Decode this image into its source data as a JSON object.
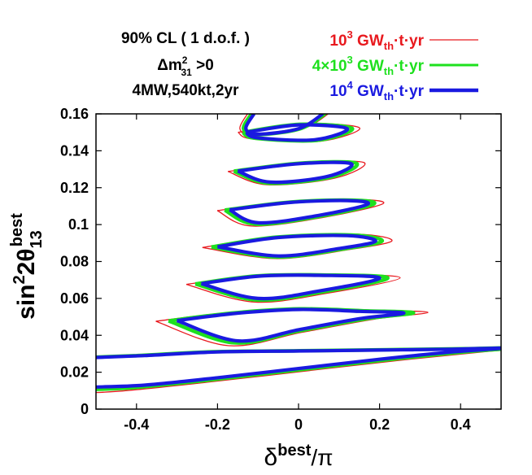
{
  "chart_data": {
    "type": "line",
    "title": "",
    "annotations": [
      {
        "text": "90% CL ( 1 d.o.f. )"
      },
      {
        "text": "Δm",
        "sup": "2",
        "sub": "31",
        "suffix": " >0"
      },
      {
        "text": "4MW,540kt,2yr"
      }
    ],
    "xlabel": {
      "main": "δ",
      "sup": "best",
      "suffix": "/π"
    },
    "ylabel": {
      "main": "sin",
      "sup1": "2",
      "mid": "2θ",
      "sub": "13",
      "sup2": "best"
    },
    "xlim": [
      -0.5,
      0.5
    ],
    "ylim": [
      0,
      0.16
    ],
    "xticks": [
      {
        "value": -0.4,
        "label": "-0.4"
      },
      {
        "value": -0.2,
        "label": "-0.2"
      },
      {
        "value": 0,
        "label": "0"
      },
      {
        "value": 0.2,
        "label": "0.2"
      },
      {
        "value": 0.4,
        "label": "0.4"
      }
    ],
    "yticks": [
      {
        "value": 0,
        "label": "0"
      },
      {
        "value": 0.02,
        "label": "0.02"
      },
      {
        "value": 0.04,
        "label": "0.04"
      },
      {
        "value": 0.06,
        "label": "0.06"
      },
      {
        "value": 0.08,
        "label": "0.08"
      },
      {
        "value": 0.1,
        "label": "0.1"
      },
      {
        "value": 0.12,
        "label": "0.12"
      },
      {
        "value": 0.14,
        "label": "0.14"
      },
      {
        "value": 0.16,
        "label": "0.16"
      }
    ],
    "grid": false,
    "legend_position": "top-right",
    "series": [
      {
        "key": "s1e3",
        "name": "10³ GW_th·t·yr",
        "legend": {
          "pre": "10",
          "sup": "3",
          "post": " GW",
          "sub": "th",
          "tail": "·t·yr"
        },
        "color": "#e8191e",
        "scale": 1.2
      },
      {
        "key": "s4e3",
        "name": "4×10³ GW_th·t·yr",
        "legend": {
          "pre": "4×10",
          "sup": "3",
          "post": " GW",
          "sub": "th",
          "tail": "·t·yr"
        },
        "color": "#1ee01e",
        "scale": 1.08
      },
      {
        "key": "s1e4",
        "name": "10⁴ GW_th·t·yr",
        "legend": {
          "pre": "10",
          "sup": "4",
          "post": " GW",
          "sub": "th",
          "tail": "·t·yr"
        },
        "color": "#1a1ae0",
        "scale": 1.0
      }
    ],
    "contours": [
      {
        "y0": 0.03,
        "points": [
          [
            -0.5,
            0.028
          ],
          [
            -0.38,
            0.029
          ],
          [
            -0.2,
            0.031
          ],
          [
            0,
            0.0315
          ],
          [
            0.2,
            0.032
          ],
          [
            0.38,
            0.0325
          ],
          [
            0.5,
            0.033
          ],
          [
            0.38,
            0.031
          ],
          [
            0.2,
            0.027
          ],
          [
            0,
            0.022
          ],
          [
            -0.2,
            0.017
          ],
          [
            -0.38,
            0.013
          ],
          [
            -0.5,
            0.012
          ]
        ]
      },
      {
        "y0": 0.05,
        "points": [
          [
            -0.3,
            0.048
          ],
          [
            -0.15,
            0.052
          ],
          [
            0,
            0.054
          ],
          [
            0.15,
            0.053
          ],
          [
            0.26,
            0.052
          ],
          [
            0.15,
            0.049
          ],
          [
            0,
            0.043
          ],
          [
            -0.15,
            0.037
          ],
          [
            -0.3,
            0.048
          ]
        ]
      },
      {
        "y0": 0.07,
        "points": [
          [
            -0.24,
            0.068
          ],
          [
            -0.1,
            0.072
          ],
          [
            0.05,
            0.0725
          ],
          [
            0.2,
            0.071
          ],
          [
            0.05,
            0.064
          ],
          [
            -0.1,
            0.06
          ],
          [
            -0.24,
            0.068
          ]
        ]
      },
      {
        "y0": 0.09,
        "points": [
          [
            -0.2,
            0.088
          ],
          [
            -0.05,
            0.093
          ],
          [
            0.12,
            0.094
          ],
          [
            0.19,
            0.091
          ],
          [
            0.1,
            0.087
          ],
          [
            -0.05,
            0.083
          ],
          [
            -0.2,
            0.088
          ]
        ]
      },
      {
        "y0": 0.11,
        "points": [
          [
            -0.17,
            0.108
          ],
          [
            -0.02,
            0.112
          ],
          [
            0.12,
            0.113
          ],
          [
            0.17,
            0.111
          ],
          [
            0.05,
            0.105
          ],
          [
            -0.1,
            0.101
          ],
          [
            -0.17,
            0.108
          ]
        ]
      },
      {
        "y0": 0.13,
        "points": [
          [
            -0.15,
            0.129
          ],
          [
            0,
            0.133
          ],
          [
            0.13,
            0.133
          ],
          [
            0.07,
            0.126
          ],
          [
            -0.07,
            0.123
          ],
          [
            -0.15,
            0.129
          ]
        ]
      },
      {
        "y0": 0.15,
        "points": [
          [
            -0.13,
            0.15
          ],
          [
            0,
            0.154
          ],
          [
            0.12,
            0.152
          ],
          [
            0.04,
            0.146
          ],
          [
            -0.1,
            0.147
          ],
          [
            -0.13,
            0.15
          ]
        ]
      },
      {
        "y0": 0.16,
        "open": true,
        "points": [
          [
            -0.12,
            0.16
          ],
          [
            -0.08,
            0.161
          ]
        ]
      }
    ],
    "partial_top": [
      {
        "points": [
          [
            -0.11,
            0.16
          ],
          [
            -0.13,
            0.152
          ],
          [
            -0.1,
            0.149
          ],
          [
            0,
            0.152
          ],
          [
            0.06,
            0.16
          ]
        ]
      }
    ]
  }
}
